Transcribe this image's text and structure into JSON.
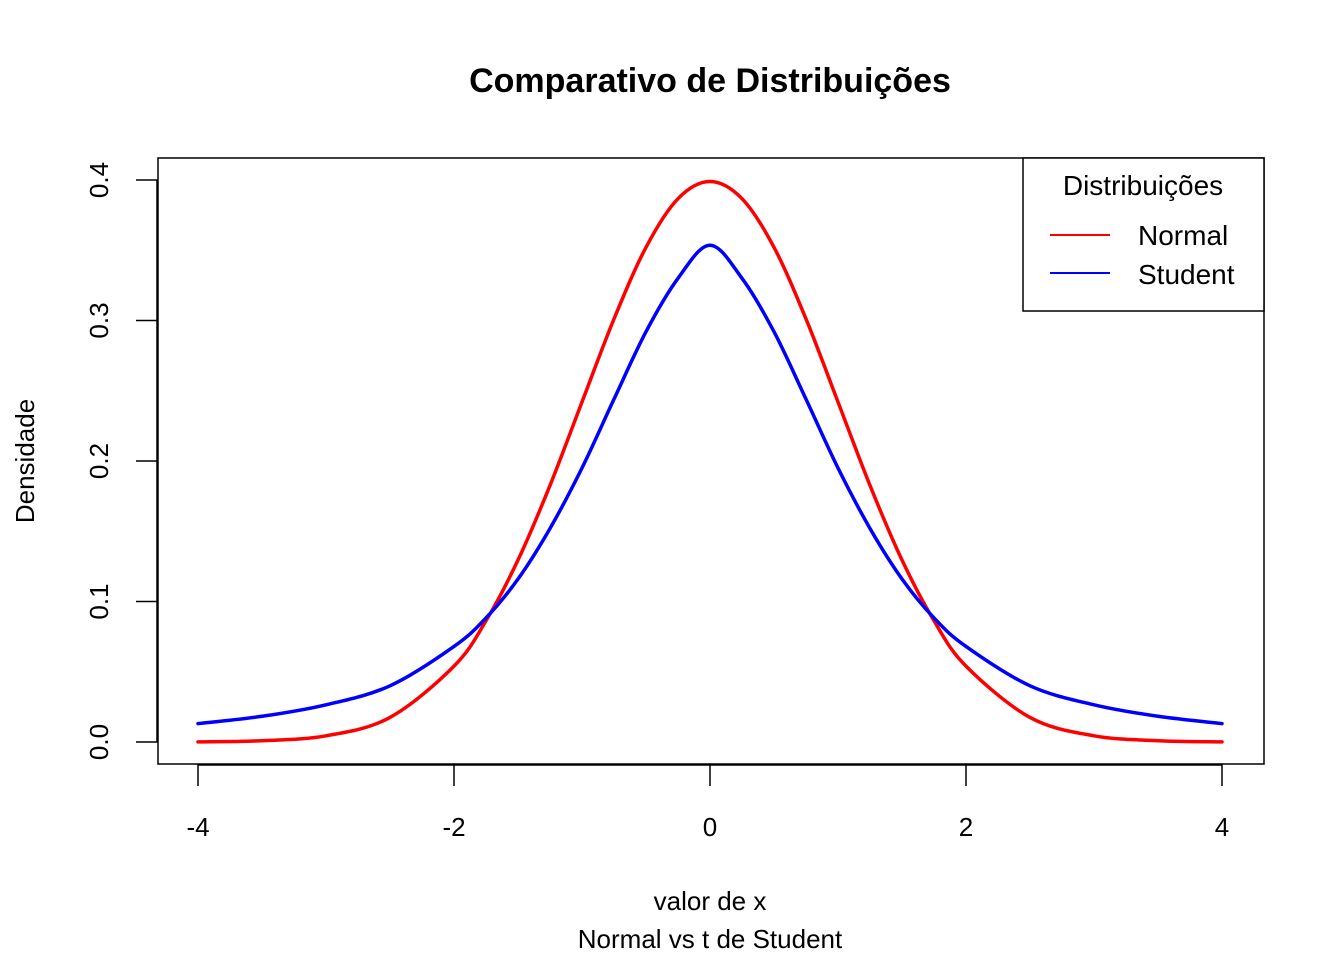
{
  "chart_data": {
    "type": "line",
    "title": "Comparativo de Distribuições",
    "xlabel": "valor de x",
    "subtitle": "Normal vs t de Student",
    "ylabel": "Densidade",
    "xlim": [
      -4,
      4
    ],
    "ylim": [
      0,
      0.4
    ],
    "x_ticks": [
      -4,
      -2,
      0,
      2,
      4
    ],
    "y_ticks": [
      0.0,
      0.1,
      0.2,
      0.3,
      0.4
    ],
    "x_tick_labels": [
      "-4",
      "-2",
      "0",
      "2",
      "4"
    ],
    "y_tick_labels": [
      "0.0",
      "0.1",
      "0.2",
      "0.3",
      "0.4"
    ],
    "grid": false,
    "legend": {
      "title": "Distribuições",
      "placement": "top-right",
      "entries": [
        "Normal",
        "Student"
      ]
    },
    "x": [
      -4,
      -3.5,
      -3,
      -2.5,
      -2,
      -1.75,
      -1.5,
      -1.25,
      -1,
      -0.75,
      -0.5,
      -0.25,
      0,
      0.25,
      0.5,
      0.75,
      1,
      1.25,
      1.5,
      1.75,
      2,
      2.5,
      3,
      3.5,
      4
    ],
    "series": [
      {
        "name": "Normal",
        "color": "#ff0000",
        "values": [
          0.0001,
          0.0009,
          0.0044,
          0.0175,
          0.054,
          0.0863,
          0.1295,
          0.1826,
          0.242,
          0.3011,
          0.3521,
          0.3867,
          0.3989,
          0.3867,
          0.3521,
          0.3011,
          0.242,
          0.1826,
          0.1295,
          0.0863,
          0.054,
          0.0175,
          0.0044,
          0.0009,
          0.0001
        ]
      },
      {
        "name": "Student",
        "color": "#0000ff",
        "values": [
          0.0131,
          0.0183,
          0.0265,
          0.04,
          0.068,
          0.0883,
          0.116,
          0.152,
          0.195,
          0.244,
          0.292,
          0.33,
          0.3536,
          0.33,
          0.292,
          0.244,
          0.195,
          0.152,
          0.116,
          0.0883,
          0.068,
          0.04,
          0.0265,
          0.0183,
          0.0131
        ]
      }
    ]
  }
}
